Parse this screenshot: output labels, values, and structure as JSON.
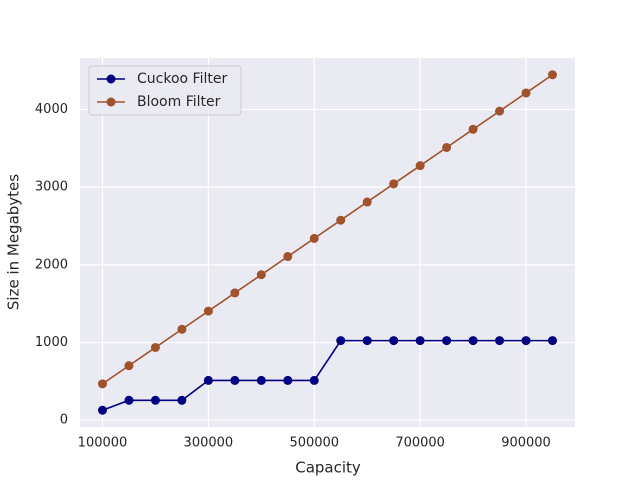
{
  "chart_data": {
    "type": "line",
    "x_label": "Capacity",
    "y_label": "Size in Megabytes",
    "x": [
      100000,
      150000,
      200000,
      250000,
      300000,
      350000,
      400000,
      450000,
      500000,
      550000,
      600000,
      650000,
      700000,
      750000,
      800000,
      850000,
      900000,
      950000
    ],
    "series": [
      {
        "name": "Cuckoo Filter",
        "color": "#000080",
        "values": [
          128,
          256,
          256,
          256,
          512,
          512,
          512,
          512,
          512,
          1024,
          1024,
          1024,
          1024,
          1024,
          1024,
          1024,
          1024,
          1024
        ]
      },
      {
        "name": "Bloom Filter",
        "color": "#a0522d",
        "values": [
          468,
          702,
          936,
          1170,
          1404,
          1638,
          1872,
          2106,
          2340,
          2574,
          2808,
          3042,
          3276,
          3510,
          3744,
          3978,
          4212,
          4446
        ]
      }
    ],
    "xlim": [
      57500,
      992500
    ],
    "xticks": [
      100000,
      300000,
      500000,
      700000,
      900000
    ],
    "ylim": [
      -87.9,
      4661.9
    ],
    "yticks": [
      0,
      1000,
      2000,
      3000,
      4000
    ],
    "grid": true,
    "legend": "upper-left",
    "background": "#eaeaf2"
  }
}
